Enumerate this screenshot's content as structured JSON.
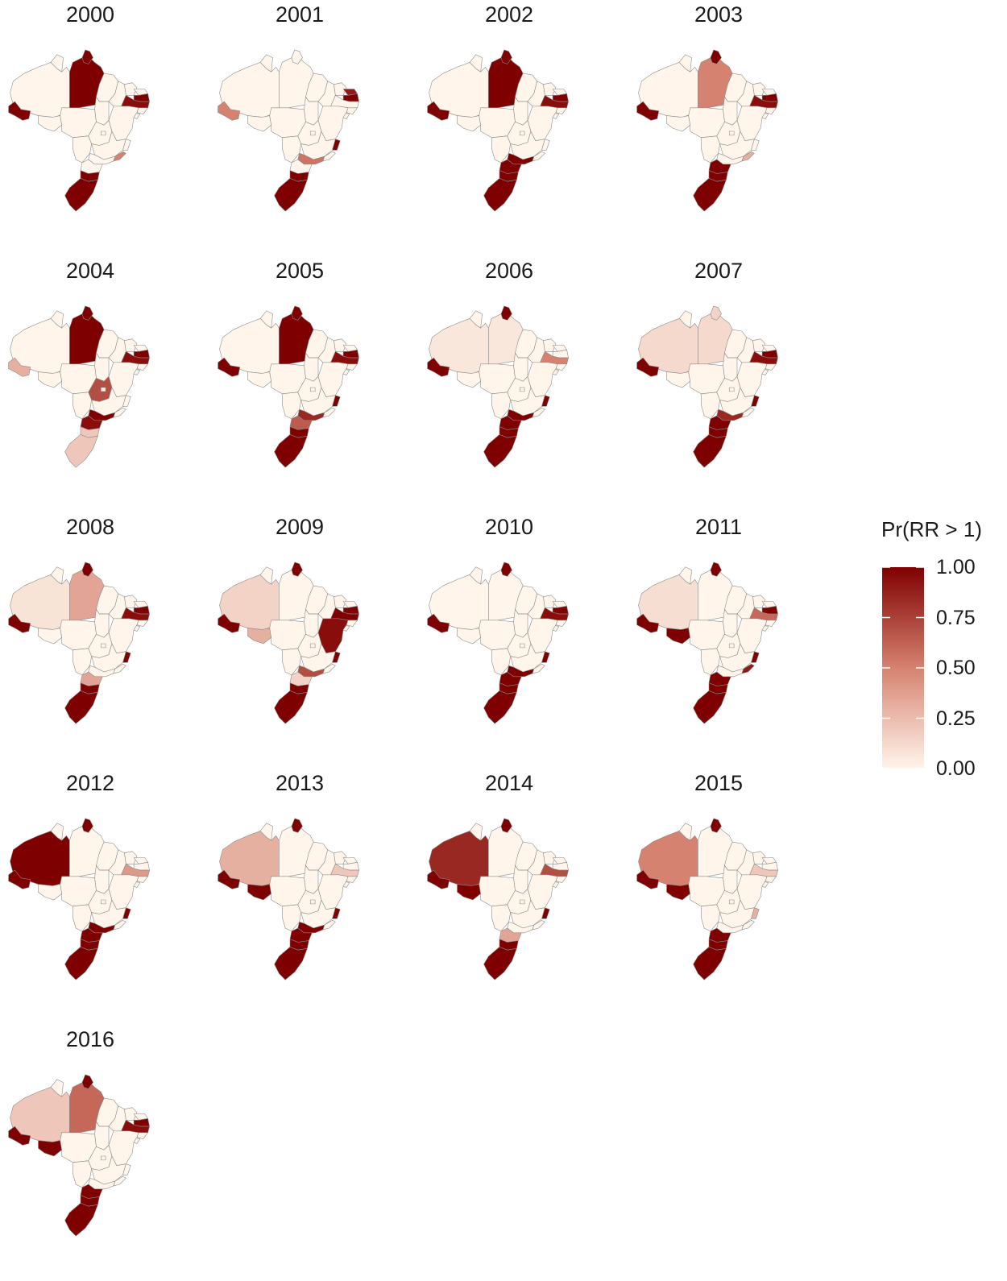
{
  "chart_data": {
    "type": "choropleth",
    "map": "Brazil by state",
    "legend": {
      "title": "Pr(RR > 1)",
      "position": "right",
      "ticks": [
        "1.00",
        "0.75",
        "0.50",
        "0.25",
        "0.00"
      ],
      "tick_values": [
        1.0,
        0.75,
        0.5,
        0.25,
        0.0
      ],
      "color_low": "#fff5eb",
      "color_high": "#7f0000"
    },
    "regions": [
      "Acre",
      "Amazonas",
      "Rondônia",
      "Pará",
      "Amapá",
      "Maranhão",
      "Mato Grosso",
      "Mato Grosso do Sul",
      "Paraná",
      "Santa Catarina",
      "Rio Grande do Sul",
      "São Paulo",
      "Rio de Janeiro",
      "Espírito Santo",
      "Minas Gerais",
      "Bahia",
      "Pernambuco",
      "Paraíba",
      "Rio Grande do Norte",
      "Alagoas",
      "Sergipe",
      "Goiás"
    ],
    "panels": [
      {
        "title": "2000",
        "values": {
          "Acre": 1.0,
          "Pará": 1.0,
          "Amapá": 1.0,
          "Paraíba": 1.0,
          "Pernambuco": 0.95,
          "Rio Grande do Sul": 1.0,
          "Santa Catarina": 1.0,
          "Rio de Janeiro": 0.5
        }
      },
      {
        "title": "2001",
        "values": {
          "Acre": 0.5,
          "Paraíba": 1.0,
          "Rio Grande do Norte": 0.9,
          "Rio Grande do Sul": 1.0,
          "Santa Catarina": 1.0,
          "São Paulo": 0.55,
          "Espírito Santo": 1.0
        }
      },
      {
        "title": "2002",
        "values": {
          "Acre": 1.0,
          "Pará": 1.0,
          "Amapá": 1.0,
          "Paraíba": 1.0,
          "Pernambuco": 0.95,
          "Rio Grande do Sul": 1.0,
          "Santa Catarina": 1.0,
          "Paraná": 1.0,
          "São Paulo": 1.0
        }
      },
      {
        "title": "2003",
        "values": {
          "Acre": 1.0,
          "Pará": 0.5,
          "Amapá": 1.0,
          "Paraíba": 1.0,
          "Pernambuco": 0.95,
          "Rio Grande do Sul": 1.0,
          "Santa Catarina": 1.0,
          "Paraná": 1.0,
          "Rio de Janeiro": 0.3
        }
      },
      {
        "title": "2004",
        "values": {
          "Acre": 0.3,
          "Pará": 1.0,
          "Amapá": 1.0,
          "Paraíba": 1.0,
          "Pernambuco": 0.95,
          "Paraná": 0.95,
          "São Paulo": 1.0,
          "Santa Catarina": 0.2,
          "Rio Grande do Sul": 0.2,
          "Goiás": 0.7
        }
      },
      {
        "title": "2005",
        "values": {
          "Acre": 1.0,
          "Pará": 1.0,
          "Amapá": 1.0,
          "Paraíba": 1.0,
          "Pernambuco": 0.95,
          "Paraná": 0.65,
          "São Paulo": 0.85,
          "Santa Catarina": 1.0,
          "Rio Grande do Sul": 1.0,
          "Espírito Santo": 1.0
        }
      },
      {
        "title": "2006",
        "values": {
          "Acre": 1.0,
          "Amapá": 1.0,
          "Amazonas": 0.06,
          "Pará": 0.06,
          "Pernambuco": 0.5,
          "Paraná": 1.0,
          "São Paulo": 1.0,
          "Santa Catarina": 1.0,
          "Rio Grande do Sul": 1.0,
          "Espírito Santo": 1.0
        }
      },
      {
        "title": "2007",
        "values": {
          "Acre": 1.0,
          "Amazonas": 0.12,
          "Pará": 0.12,
          "Amapá": 0.15,
          "Paraíba": 1.0,
          "Pernambuco": 0.95,
          "Paraná": 1.0,
          "São Paulo": 0.85,
          "Santa Catarina": 1.0,
          "Rio Grande do Sul": 1.0,
          "Espírito Santo": 1.0
        }
      },
      {
        "title": "2008",
        "values": {
          "Acre": 1.0,
          "Amazonas": 0.08,
          "Pará": 0.35,
          "Amapá": 1.0,
          "Paraíba": 1.0,
          "Pernambuco": 0.95,
          "Espírito Santo": 1.0,
          "Paraná": 0.35,
          "Santa Catarina": 1.0,
          "Rio Grande do Sul": 1.0
        }
      },
      {
        "title": "2009",
        "values": {
          "Acre": 1.0,
          "Amazonas": 0.15,
          "Rondônia": 0.3,
          "Amapá": 1.0,
          "Pernambuco": 1.0,
          "Paraíba": 1.0,
          "Bahia": 0.95,
          "Espírito Santo": 1.0,
          "São Paulo": 0.7,
          "Paraná": 0.15,
          "Santa Catarina": 1.0,
          "Rio Grande do Sul": 1.0
        }
      },
      {
        "title": "2010",
        "values": {
          "Acre": 1.0,
          "Amapá": 1.0,
          "Paraíba": 1.0,
          "Pernambuco": 0.95,
          "Espírito Santo": 1.0,
          "São Paulo": 1.0,
          "Paraná": 1.0,
          "Santa Catarina": 1.0,
          "Rio Grande do Sul": 1.0
        }
      },
      {
        "title": "2011",
        "values": {
          "Acre": 1.0,
          "Rondônia": 1.0,
          "Amazonas": 0.1,
          "Amapá": 1.0,
          "Paraíba": 1.0,
          "Pernambuco": 0.6,
          "Espírito Santo": 1.0,
          "Rio de Janeiro": 0.9,
          "Paraná": 1.0,
          "Santa Catarina": 1.0,
          "Rio Grande do Sul": 1.0
        }
      },
      {
        "title": "2012",
        "values": {
          "Amazonas": 1.0,
          "Acre": 1.0,
          "Amapá": 1.0,
          "Pernambuco": 0.4,
          "Espírito Santo": 1.0,
          "São Paulo": 1.0,
          "Paraná": 1.0,
          "Santa Catarina": 1.0,
          "Rio Grande do Sul": 1.0
        }
      },
      {
        "title": "2013",
        "values": {
          "Amazonas": 0.3,
          "Acre": 1.0,
          "Rondônia": 1.0,
          "Amapá": 1.0,
          "Pernambuco": 0.2,
          "Espírito Santo": 1.0,
          "São Paulo": 1.0,
          "Paraná": 1.0,
          "Santa Catarina": 1.0,
          "Rio Grande do Sul": 1.0
        }
      },
      {
        "title": "2014",
        "values": {
          "Amazonas": 0.85,
          "Acre": 1.0,
          "Rondônia": 1.0,
          "Amapá": 1.0,
          "Pernambuco": 0.7,
          "Espírito Santo": 1.0,
          "Paraná": 0.35,
          "Santa Catarina": 1.0,
          "Rio Grande do Sul": 1.0
        }
      },
      {
        "title": "2015",
        "values": {
          "Amazonas": 0.5,
          "Acre": 1.0,
          "Rondônia": 1.0,
          "Amapá": 1.0,
          "Pernambuco": 0.2,
          "Espírito Santo": 0.3,
          "Paraná": 1.0,
          "Santa Catarina": 1.0,
          "Rio Grande do Sul": 1.0
        }
      },
      {
        "title": "2016",
        "values": {
          "Amazonas": 0.2,
          "Pará": 0.6,
          "Amapá": 1.0,
          "Acre": 1.0,
          "Rondônia": 1.0,
          "Pernambuco": 0.95,
          "Paraíba": 1.0,
          "Paraná": 1.0,
          "Santa Catarina": 1.0,
          "Rio Grande do Sul": 1.0
        }
      }
    ]
  }
}
